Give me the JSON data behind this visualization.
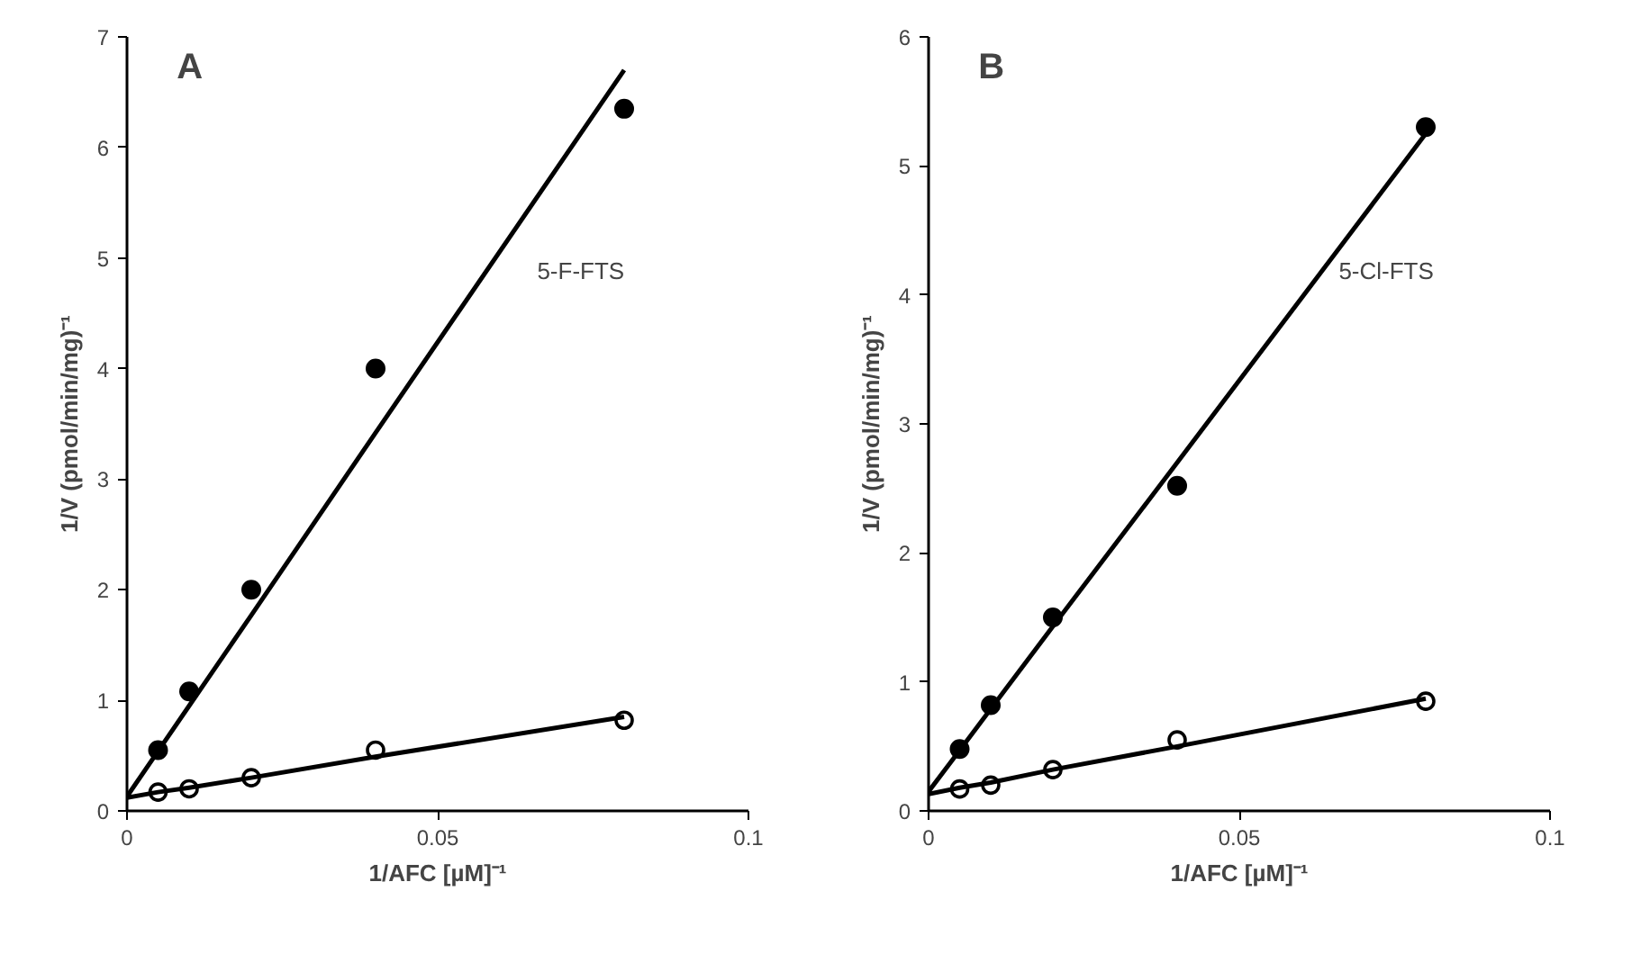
{
  "chart_data": [
    {
      "type": "scatter",
      "xlabel": "1/AFC [µM]⁻¹",
      "ylabel": "1/V (pmol/min/mg)⁻¹",
      "xlim": [
        0,
        0.1
      ],
      "ylim": [
        0,
        7
      ],
      "xticks": [
        0,
        0.05,
        0.1
      ],
      "yticks": [
        0,
        1,
        2,
        3,
        4,
        5,
        6,
        7
      ],
      "grid": false,
      "annotations": [
        "A",
        "5-F-FTS"
      ],
      "x": [
        0,
        0.005,
        0.01,
        0.02,
        0.04,
        0.08
      ],
      "series": [
        {
          "color": "#000000",
          "marker": "circle",
          "values": [
            null,
            0.55,
            1.08,
            2.0,
            4.0,
            6.35
          ]
        },
        {
          "color": "#000000",
          "marker": "circle_open",
          "values": [
            null,
            0.17,
            0.2,
            0.3,
            0.55,
            0.82
          ]
        },
        {
          "type": "line",
          "color": "#000000",
          "marker": "none",
          "values": [
            0.13,
            0.54,
            0.95,
            1.77,
            3.42,
            6.7
          ]
        },
        {
          "type": "line",
          "color": "#000000",
          "marker": "none",
          "values": [
            0.12,
            0.17,
            0.21,
            0.3,
            0.49,
            0.85
          ]
        }
      ]
    },
    {
      "type": "scatter",
      "xlabel": "1/AFC [µM]⁻¹",
      "ylabel": "1/V (pmol/min/mg)⁻¹",
      "xlim": [
        0,
        0.1
      ],
      "ylim": [
        0,
        6
      ],
      "xticks": [
        0,
        0.05,
        0.1
      ],
      "yticks": [
        0,
        1,
        2,
        3,
        4,
        5,
        6
      ],
      "grid": false,
      "annotations": [
        "B",
        "5-Cl-FTS"
      ],
      "x": [
        0,
        0.005,
        0.01,
        0.02,
        0.04,
        0.08
      ],
      "series": [
        {
          "color": "#000000",
          "marker": "circle",
          "values": [
            null,
            0.48,
            0.82,
            1.5,
            2.52,
            5.3
          ]
        },
        {
          "color": "#000000",
          "marker": "circle_open",
          "values": [
            null,
            0.17,
            0.2,
            0.32,
            0.55,
            0.85
          ]
        },
        {
          "type": "line",
          "color": "#000000",
          "marker": "none",
          "values": [
            0.15,
            0.47,
            0.79,
            1.43,
            2.7,
            5.25
          ]
        },
        {
          "type": "line",
          "color": "#000000",
          "marker": "none",
          "values": [
            0.13,
            0.18,
            0.22,
            0.32,
            0.5,
            0.87
          ]
        }
      ]
    }
  ]
}
